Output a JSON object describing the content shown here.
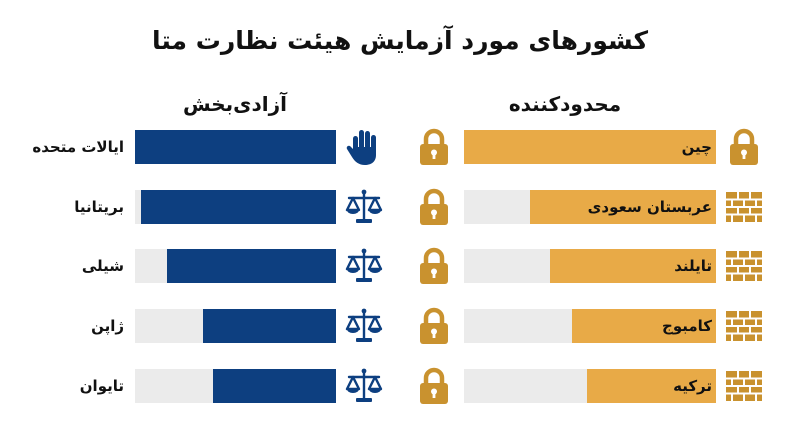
{
  "title": "کشورهای مورد آزمایش هیئت نظارت متا",
  "colors": {
    "free": "#0d3f80",
    "restrictive": "#e8aa47",
    "track": "#ebebeb"
  },
  "chart_data": {
    "type": "bar",
    "orientation": "horizontal",
    "groups": [
      {
        "name": "آزادی‌بخش",
        "color": "#0d3f80",
        "items": [
          {
            "label": "ایالات متحده",
            "value": 1.0,
            "icon": "hand-stop-icon"
          },
          {
            "label": "بریتانیا",
            "value": 0.97,
            "icon": "scales-icon"
          },
          {
            "label": "شیلی",
            "value": 0.84,
            "icon": "scales-icon"
          },
          {
            "label": "ژاپن",
            "value": 0.66,
            "icon": "scales-icon"
          },
          {
            "label": "تایوان",
            "value": 0.61,
            "icon": "scales-icon"
          }
        ]
      },
      {
        "name": "محدودکننده",
        "color": "#e8aa47",
        "items": [
          {
            "label": "چین",
            "value": 1.0,
            "icon_left": "padlock-icon",
            "icon_right": "padlock-icon"
          },
          {
            "label": "عربستان سعودی",
            "value": 0.74,
            "icon_left": "padlock-icon",
            "icon_right": "brick-wall-icon"
          },
          {
            "label": "تایلند",
            "value": 0.66,
            "icon_left": "padlock-icon",
            "icon_right": "brick-wall-icon"
          },
          {
            "label": "کامبوج",
            "value": 0.57,
            "icon_left": "padlock-icon",
            "icon_right": "brick-wall-icon"
          },
          {
            "label": "ترکیه",
            "value": 0.51,
            "icon_left": "padlock-icon",
            "icon_right": "brick-wall-icon"
          }
        ]
      }
    ]
  }
}
